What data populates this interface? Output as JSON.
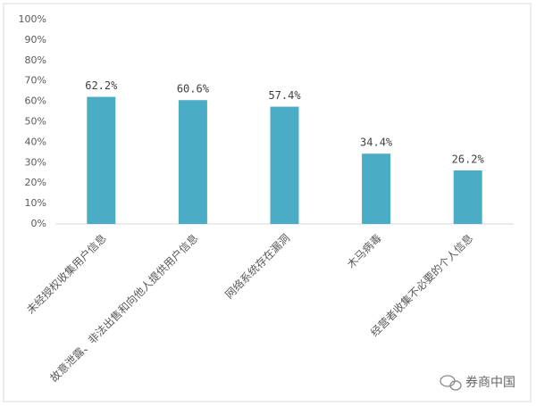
{
  "chart_data": {
    "type": "bar",
    "categories": [
      "未经授权收集用户信息",
      "故意泄露、非法出售和向他人提供用户信息",
      "网络系统存在漏洞",
      "木马病毒",
      "经营者收集不必要的个人信息"
    ],
    "values": [
      62.2,
      60.6,
      57.4,
      34.4,
      26.2
    ],
    "value_labels": [
      "62.2%",
      "60.6%",
      "57.4%",
      "34.4%",
      "26.2%"
    ],
    "color": "#4bacc6",
    "ylim": [
      0,
      100
    ],
    "yticks": [
      {
        "value": 0,
        "label": "0%"
      },
      {
        "value": 10,
        "label": "10%"
      },
      {
        "value": 20,
        "label": "20%"
      },
      {
        "value": 30,
        "label": "30%"
      },
      {
        "value": 40,
        "label": "40%"
      },
      {
        "value": 50,
        "label": "50%"
      },
      {
        "value": 60,
        "label": "60%"
      },
      {
        "value": 70,
        "label": "70%"
      },
      {
        "value": 80,
        "label": "80%"
      },
      {
        "value": 90,
        "label": "90%"
      },
      {
        "value": 100,
        "label": "100%"
      }
    ],
    "grid": false,
    "watermark": "券商中国"
  }
}
